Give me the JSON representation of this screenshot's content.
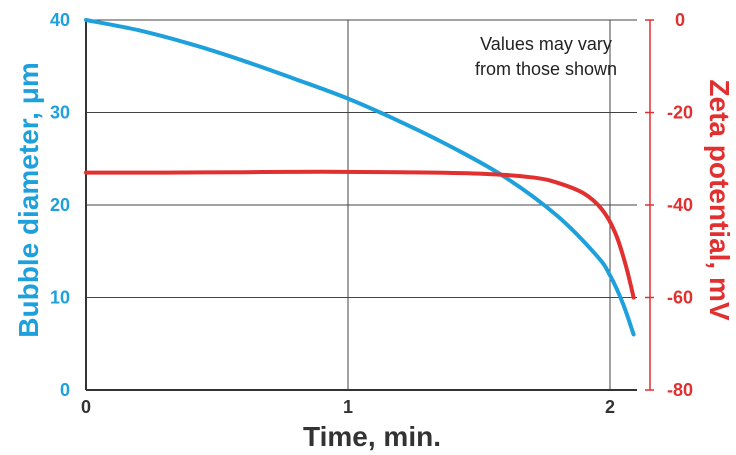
{
  "chart_data": {
    "type": "line",
    "title": "",
    "xlabel": "Time, min.",
    "ylabel_left": "Bubble diameter, μm",
    "ylabel_right": "Zeta potential, mV",
    "xlim": [
      0,
      2.1
    ],
    "ylim_left": [
      0,
      40
    ],
    "ylim_right": [
      -80,
      0
    ],
    "x_ticks": [
      "0",
      "1",
      "2"
    ],
    "y_left_ticks": [
      "0",
      "10",
      "20",
      "30",
      "40"
    ],
    "y_right_ticks": [
      "0",
      "-20",
      "-40",
      "-60",
      "-80"
    ],
    "grid": true,
    "annotation": [
      "Values may vary",
      "from those shown"
    ],
    "colors": {
      "left_axis": "#1ea0dc",
      "right_axis": "#e03030",
      "grid": "#444444"
    },
    "series": [
      {
        "axis": "left",
        "color": "#1ea0dc",
        "x": [
          0,
          0.2,
          0.4,
          0.6,
          0.8,
          1.0,
          1.2,
          1.4,
          1.6,
          1.8,
          1.95,
          2.0,
          2.05,
          2.09
        ],
        "y": [
          40,
          38.9,
          37.4,
          35.6,
          33.6,
          31.5,
          29.0,
          26.2,
          23.0,
          18.8,
          14.5,
          12.4,
          9.3,
          6.0
        ]
      },
      {
        "axis": "right",
        "color": "#e03030",
        "x": [
          0,
          0.3,
          0.6,
          0.9,
          1.2,
          1.5,
          1.7,
          1.8,
          1.9,
          1.97,
          2.02,
          2.06,
          2.09
        ],
        "y": [
          -33,
          -33,
          -32.9,
          -32.8,
          -32.9,
          -33.2,
          -34,
          -35.2,
          -37.5,
          -41,
          -46,
          -53,
          -60
        ]
      }
    ]
  }
}
